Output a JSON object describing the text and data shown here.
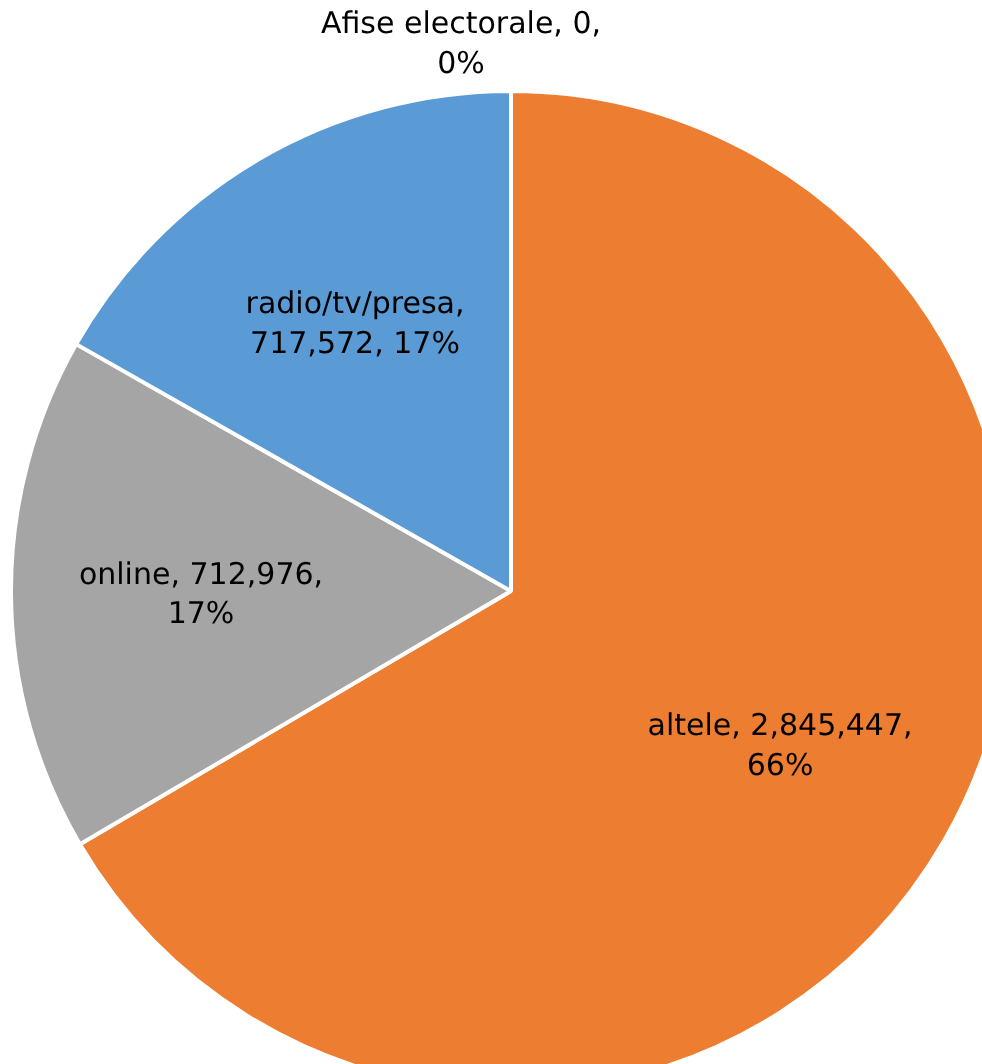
{
  "chart_data": {
    "type": "pie",
    "categories": [
      "Afise electorale",
      "altele",
      "online",
      "radio/tv/presa"
    ],
    "values": [
      0,
      2845447,
      712976,
      717572
    ],
    "colors": [
      "#4472c4",
      "#ed7d31",
      "#a5a5a5",
      "#5b9bd5"
    ],
    "value_labels": [
      ", 0,\n0%",
      ", 2,845,447,\n66%",
      ", 712,976,\n17%",
      ",\n717,572, 17%"
    ]
  }
}
